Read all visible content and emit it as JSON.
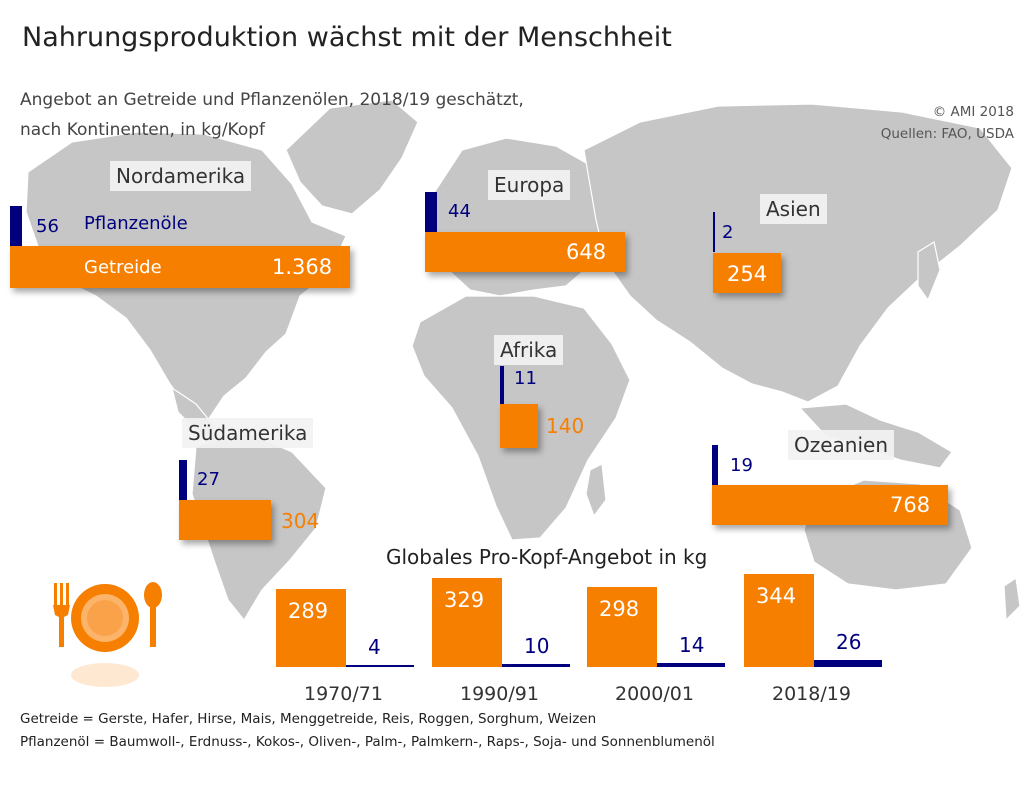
{
  "title": "Nahrungsproduktion wächst mit der Menschheit",
  "subtitle_line1": "Angebot an Getreide und Pflanzenölen, 2018/19 geschätzt,",
  "subtitle_line2": "nach Kontinenten, in kg/Kopf",
  "copyright": "© AMI 2018",
  "sources": "Quellen: FAO, USDA",
  "legend": {
    "oil": "Pflanzenöle",
    "grain": "Getreide"
  },
  "colors": {
    "grain": "#f77f00",
    "oil": "#00007f",
    "map": "#c4c4c4"
  },
  "global_title": "Globales Pro-Kopf-Angebot in kg",
  "footnote_grain": "Getreide = Gerste, Hafer, Hirse, Mais, Menggetreide, Reis, Roggen, Sorghum, Weizen",
  "footnote_oil": "Pflanzenöl = Baumwoll-, Erdnuss-, Kokos-, Oliven-, Palm-,  Palmkern-, Raps-, Soja- und Sonnenblumenöl",
  "icon": "plate-fork-spoon-icon",
  "chart_data": [
    {
      "type": "bar",
      "categories": [
        "Nordamerika",
        "Europa",
        "Asien",
        "Afrika",
        "Südamerika",
        "Ozeanien"
      ],
      "series": [
        {
          "name": "Getreide",
          "values": [
            1368,
            648,
            254,
            140,
            304,
            768
          ]
        },
        {
          "name": "Pflanzenöle",
          "values": [
            56,
            44,
            2,
            11,
            27,
            19
          ]
        }
      ],
      "labels": {
        "Getreide": [
          "1.368",
          "648",
          "254",
          "140",
          "304",
          "768"
        ],
        "Pflanzenöle": [
          "56",
          "44",
          "2",
          "11",
          "27",
          "19"
        ]
      }
    },
    {
      "type": "bar",
      "categories": [
        "1970/71",
        "1990/91",
        "2000/01",
        "2018/19"
      ],
      "series": [
        {
          "name": "Getreide",
          "values": [
            289,
            329,
            298,
            344
          ]
        },
        {
          "name": "Pflanzenöle",
          "values": [
            4,
            10,
            14,
            26
          ]
        }
      ]
    }
  ]
}
